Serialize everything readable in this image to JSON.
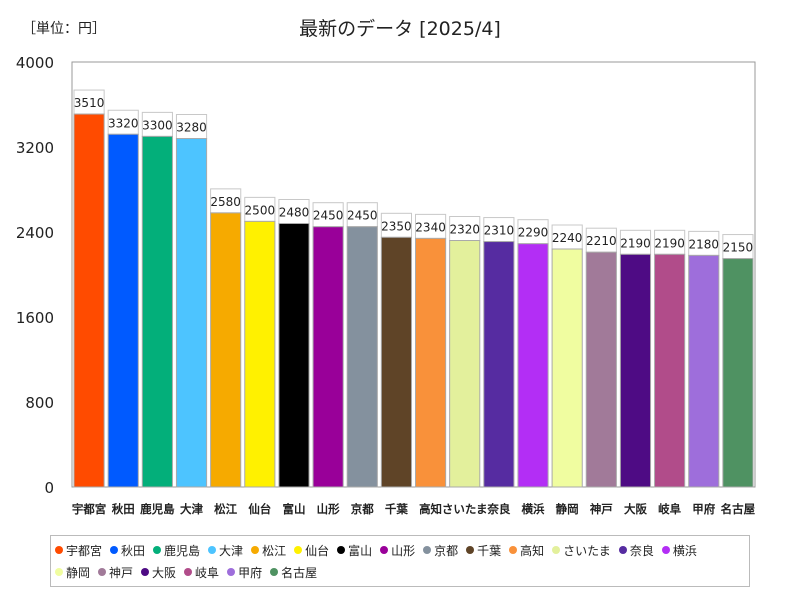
{
  "chart_data": {
    "type": "bar",
    "title": "最新のデータ [2025/4]",
    "unit_label": "［単位：円］",
    "xlabel": "",
    "ylabel": "",
    "ylim": [
      0,
      4000
    ],
    "yticks": [
      0,
      800,
      1600,
      2400,
      3200,
      4000
    ],
    "categories": [
      "宇都宮",
      "秋田",
      "鹿児島",
      "大津",
      "松江",
      "仙台",
      "富山",
      "山形",
      "京都",
      "千葉",
      "高知",
      "さいたま",
      "奈良",
      "横浜",
      "静岡",
      "神戸",
      "大阪",
      "岐阜",
      "甲府",
      "名古屋"
    ],
    "values": [
      3510,
      3320,
      3300,
      3280,
      2580,
      2500,
      2480,
      2450,
      2450,
      2350,
      2340,
      2320,
      2310,
      2290,
      2240,
      2210,
      2190,
      2190,
      2180,
      2150
    ],
    "colors": [
      "#ff4b00",
      "#005aff",
      "#03af7a",
      "#4dc4ff",
      "#f6aa00",
      "#fff100",
      "#000000",
      "#990099",
      "#84919e",
      "#5f4427",
      "#f9913a",
      "#e3f09c",
      "#562ca1",
      "#b32ef5",
      "#f0fda0",
      "#a17a99",
      "#4e0b84",
      "#b14c8a",
      "#9e6edb",
      "#4f9262"
    ],
    "legend": [
      "宇都宮",
      "秋田",
      "鹿児島",
      "大津",
      "松江",
      "仙台",
      "富山",
      "山形",
      "京都",
      "千葉",
      "高知",
      "さいたま",
      "奈良",
      "横浜",
      "静岡",
      "神戸",
      "大阪",
      "岐阜",
      "甲府",
      "名古屋"
    ],
    "legend_position": "bottom",
    "grid": false
  }
}
